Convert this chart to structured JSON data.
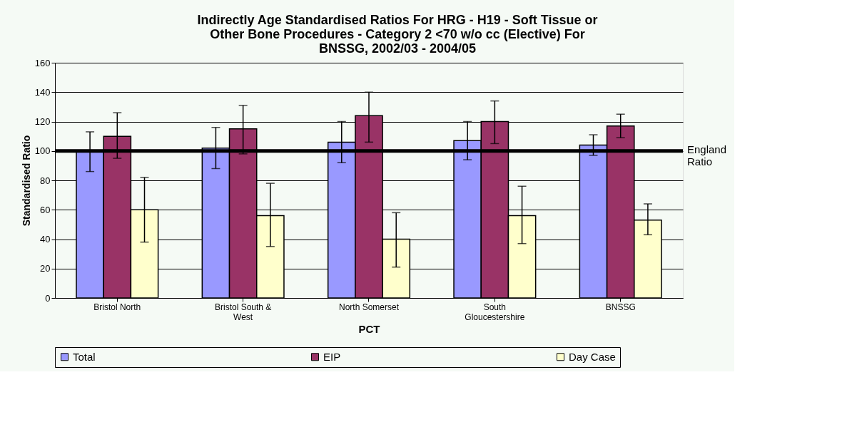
{
  "chart_data": {
    "type": "bar",
    "title": "Indirectly Age Standardised Ratios For HRG - H19 - Soft Tissue or Other Bone Procedures - Category 2 <70 w/o cc (Elective)  For BNSSG, 2002/03 - 2004/05",
    "xlabel": "PCT",
    "ylabel": "Standardised Ratio",
    "categories": [
      "Bristol North",
      "Bristol South & West",
      "North Somerset",
      "South Gloucestershire",
      "BNSSG"
    ],
    "series": [
      {
        "name": "Total",
        "color": "#9999ff",
        "values": [
          100,
          102,
          106,
          107,
          104
        ],
        "errors": [
          [
            86,
            113
          ],
          [
            88,
            116
          ],
          [
            92,
            120
          ],
          [
            94,
            120
          ],
          [
            97,
            111
          ]
        ]
      },
      {
        "name": "EIP",
        "color": "#993366",
        "values": [
          110,
          115,
          124,
          120,
          117
        ],
        "errors": [
          [
            95,
            126
          ],
          [
            98,
            131
          ],
          [
            106,
            140
          ],
          [
            105,
            134
          ],
          [
            109,
            125
          ]
        ]
      },
      {
        "name": "Day Case",
        "color": "#ffffcc",
        "values": [
          60,
          56,
          40,
          56,
          53
        ],
        "errors": [
          [
            38,
            82
          ],
          [
            35,
            78
          ],
          [
            21,
            58
          ],
          [
            37,
            76
          ],
          [
            43,
            64
          ]
        ]
      }
    ],
    "ylim": [
      0,
      160
    ],
    "yticks": [
      0,
      20,
      40,
      60,
      80,
      100,
      120,
      140,
      160
    ],
    "ref_lines": [
      {
        "axis": "y",
        "value": 100,
        "label": "England Ratio"
      }
    ],
    "grid": "y",
    "legend": "bottom"
  }
}
